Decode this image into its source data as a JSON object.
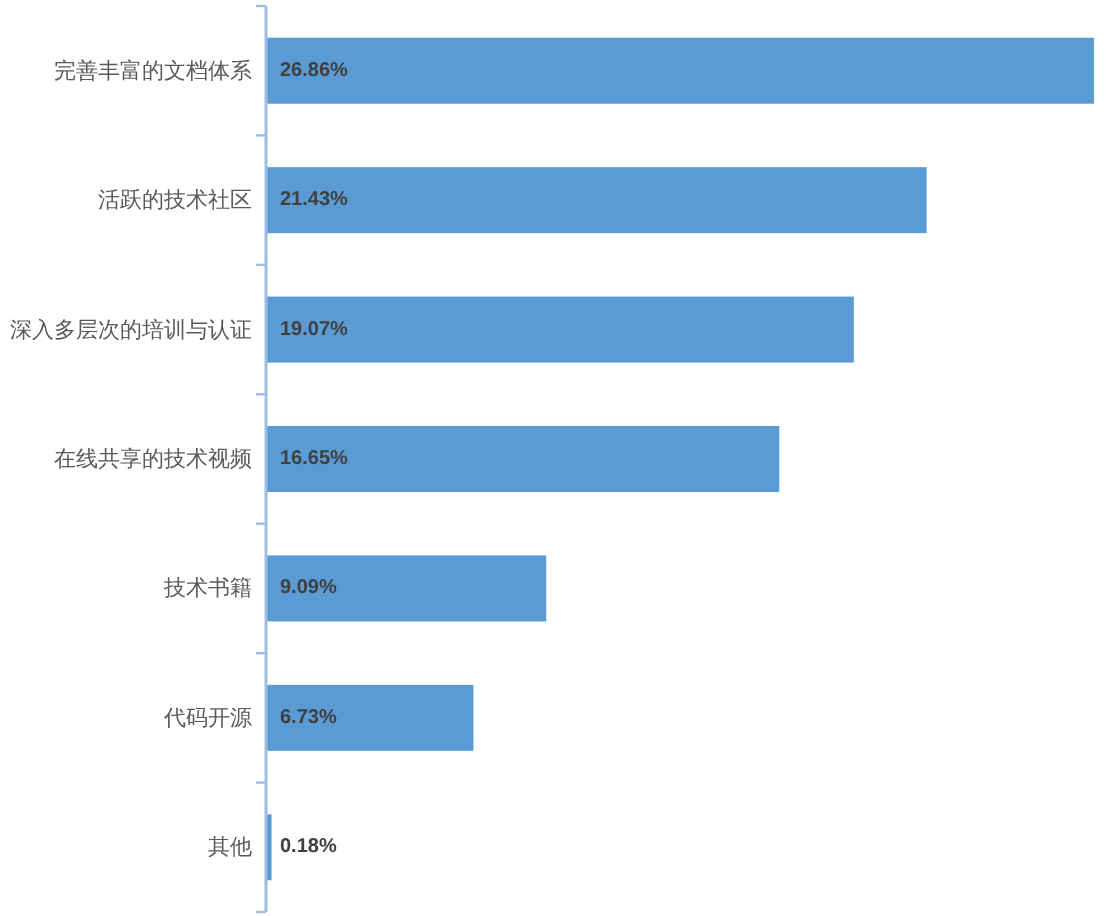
{
  "chart_data": {
    "type": "bar",
    "orientation": "horizontal",
    "categories": [
      "完善丰富的文档体系",
      "活跃的技术社区",
      "深入多层次的培训与认证",
      "在线共享的技术视频",
      "技术书籍",
      "代码开源",
      "其他"
    ],
    "values": [
      26.86,
      21.43,
      19.07,
      16.65,
      9.09,
      6.73,
      0.18
    ],
    "value_labels": [
      "26.86%",
      "21.43%",
      "19.07%",
      "16.65%",
      "9.09%",
      "6.73%",
      "0.18%"
    ],
    "color": "#5b9bd5"
  }
}
